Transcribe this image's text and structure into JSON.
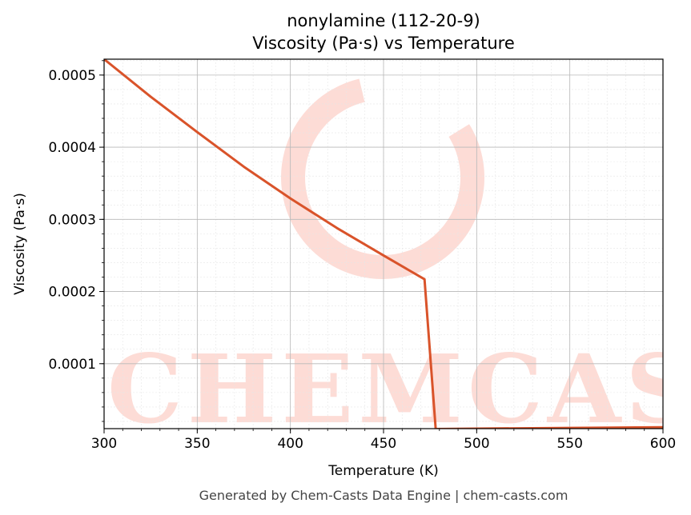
{
  "chart_data": {
    "type": "line",
    "title": "nonylamine (112-20-9)",
    "subtitle": "Viscosity (Pa·s) vs Temperature",
    "xlabel": "Temperature (K)",
    "ylabel": "Viscosity (Pa·s)",
    "xlim": [
      300,
      600
    ],
    "ylim": [
      1e-05,
      0.000522
    ],
    "x_ticks": [
      300,
      350,
      400,
      450,
      500,
      550,
      600
    ],
    "y_ticks": [
      0.0001,
      0.0002,
      0.0003,
      0.0004,
      0.0005
    ],
    "y_tick_labels": [
      "0.0001",
      "0.0002",
      "0.0003",
      "0.0004",
      "0.0005"
    ],
    "grid": true,
    "minor_grid": true,
    "series": [
      {
        "color": "#d9532a",
        "x": [
          300,
          325,
          350,
          375,
          400,
          425,
          450,
          472,
          478,
          500,
          550,
          600
        ],
        "y": [
          0.000522,
          0.00047,
          0.000421,
          0.000373,
          0.000329,
          0.000288,
          0.00025,
          0.000217,
          9.5e-06,
          1e-05,
          1.1e-05,
          1.2e-05
        ]
      }
    ]
  },
  "footer": "Generated by Chem-Casts Data Engine | chem-casts.com",
  "watermark": "CHEMCASTS"
}
